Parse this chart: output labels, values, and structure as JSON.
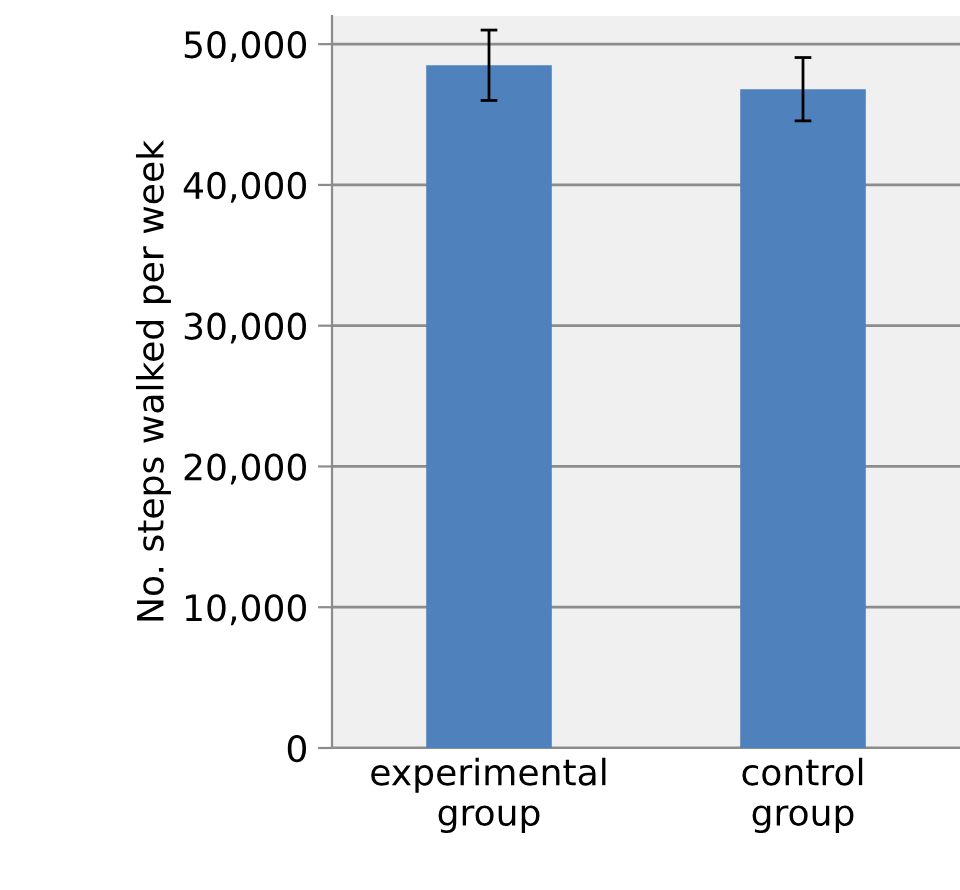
{
  "chart_data": {
    "type": "bar",
    "ylabel": "No. steps walked per week",
    "categories": [
      "experimental\ngroup",
      "control\ngroup"
    ],
    "values": [
      48500,
      46800
    ],
    "errors": [
      2500,
      2250
    ],
    "color": "#4f81bd",
    "ylim": [
      0,
      52000
    ],
    "yticks": [
      {
        "value": 0,
        "label": "0"
      },
      {
        "value": 10000,
        "label": "10,000"
      },
      {
        "value": 20000,
        "label": "20,000"
      },
      {
        "value": 30000,
        "label": "30,000"
      },
      {
        "value": 40000,
        "label": "40,000"
      },
      {
        "value": 50000,
        "label": "50,000"
      }
    ],
    "grid": "y"
  }
}
